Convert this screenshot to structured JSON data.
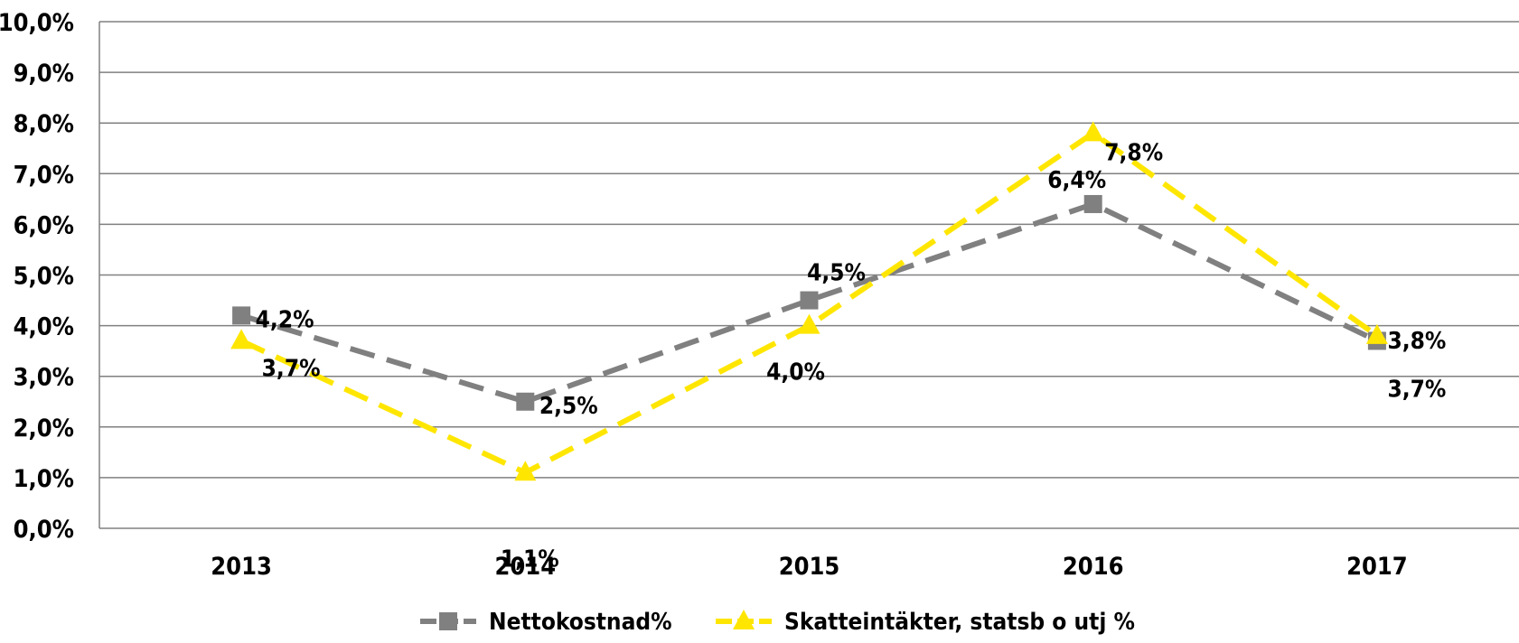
{
  "chart_data": {
    "type": "line",
    "title": "",
    "xlabel": "",
    "ylabel": "",
    "categories": [
      "2013",
      "2014",
      "2015",
      "2016",
      "2017"
    ],
    "ylim": [
      0,
      10
    ],
    "yticks": [
      "0,0%",
      "1,0%",
      "2,0%",
      "3,0%",
      "4,0%",
      "5,0%",
      "6,0%",
      "7,0%",
      "8,0%",
      "9,0%",
      "10,0%"
    ],
    "grid": true,
    "legend_position": "bottom",
    "series": [
      {
        "name": "Nettokostnad%",
        "values": [
          4.2,
          2.5,
          4.5,
          6.4,
          3.7
        ],
        "labels": [
          "4,2%",
          "2,5%",
          "4,5%",
          "6,4%",
          "3,7%"
        ],
        "color": "#808080",
        "marker": "square",
        "line_style": "dashed"
      },
      {
        "name": "Skatteintäkter, statsb o utj %",
        "values": [
          3.7,
          1.1,
          4.0,
          7.8,
          3.8
        ],
        "labels": [
          "3,7%",
          "1,1%",
          "4,0%",
          "7,8%",
          "3,8%"
        ],
        "color": "#FFE600",
        "marker": "triangle",
        "line_style": "dashed"
      }
    ]
  }
}
